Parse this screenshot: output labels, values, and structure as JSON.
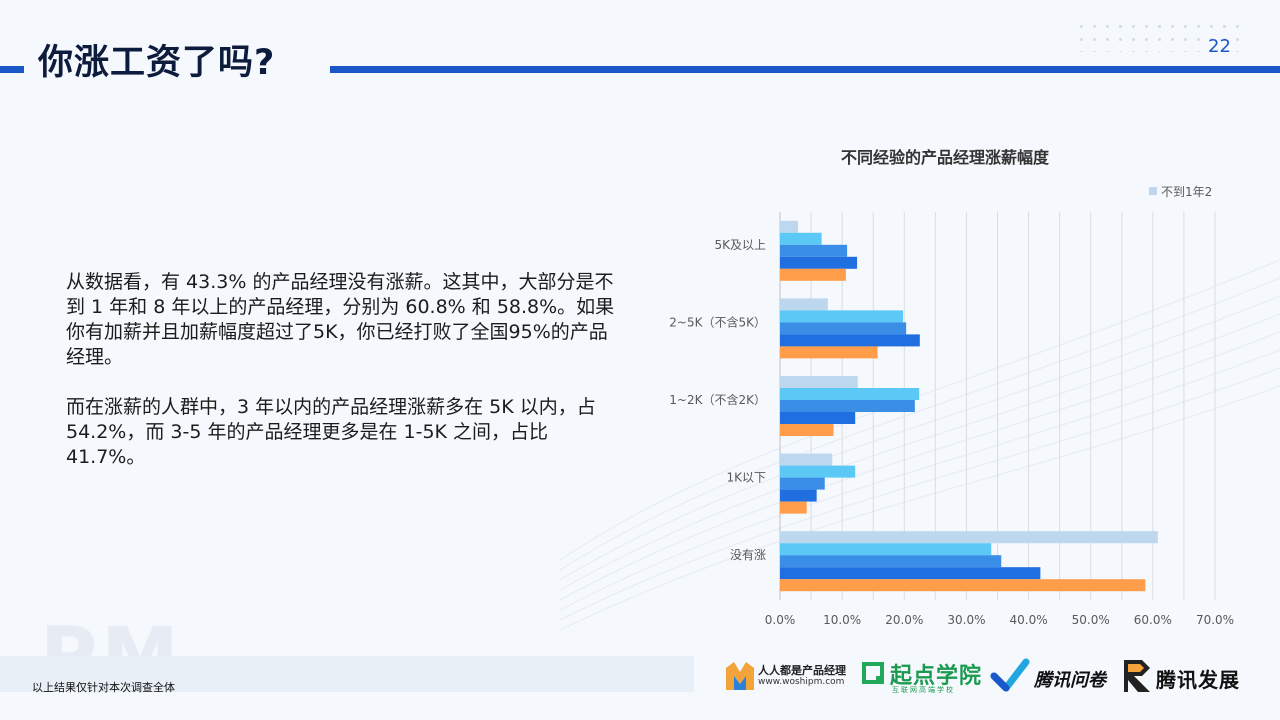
{
  "header": {
    "title": "你涨工资了吗?",
    "page_number": "22"
  },
  "body": {
    "paragraph1": "从数据看，有 43.3% 的产品经理没有涨薪。这其中，大部分是不到 1 年和 8 年以上的产品经理，分别为 60.8% 和 58.8%。如果你有加薪并且加薪幅度超过了5K，你已经打败了全国95%的产品经理。",
    "paragraph2": "而在涨薪的人群中，3 年以内的产品经理涨薪多在 5K 以内，占 54.2%，而 3-5 年的产品经理更多是在 1-5K 之间，占比 41.7%。"
  },
  "watermark": "PM",
  "footnote": "以上结果仅针对本次调查全体",
  "logos": {
    "woshipm_name": "人人都是产品经理",
    "woshipm_url": "www.woshipm.com",
    "qidian_name": "起点学院",
    "qidian_sub": "互联网高端学校",
    "wenjuan_name": "腾讯问卷",
    "fazhan_name": "腾讯发展"
  },
  "colors": {
    "accent": "#1a57c9",
    "series": [
      "#bdd7ee",
      "#5bc8f5",
      "#3a8ee6",
      "#1f6fe0",
      "#ff9d4b"
    ]
  },
  "chart_data": {
    "type": "bar",
    "orientation": "horizontal",
    "title": "不同经验的产品经理涨薪幅度",
    "categories": [
      "5K及以上",
      "2~5K（不含5K）",
      "1~2K（不含2K）",
      "1K以下",
      "没有涨"
    ],
    "series": [
      {
        "name": "不到1年2",
        "values": [
          2.9,
          7.7,
          12.5,
          8.4,
          60.8
        ]
      },
      {
        "values": [
          6.7,
          19.8,
          22.4,
          12.1,
          34.0
        ]
      },
      {
        "values": [
          10.8,
          20.3,
          21.7,
          7.2,
          35.6
        ]
      },
      {
        "values": [
          12.4,
          22.5,
          12.1,
          5.9,
          41.9
        ]
      },
      {
        "values": [
          10.6,
          15.7,
          8.6,
          4.3,
          58.8
        ]
      }
    ],
    "x_ticks": [
      "0.0%",
      "10.0%",
      "20.0%",
      "30.0%",
      "40.0%",
      "50.0%",
      "60.0%",
      "70.0%"
    ],
    "xlim": [
      0,
      70
    ],
    "grid": true,
    "legend_position": "top-right"
  }
}
